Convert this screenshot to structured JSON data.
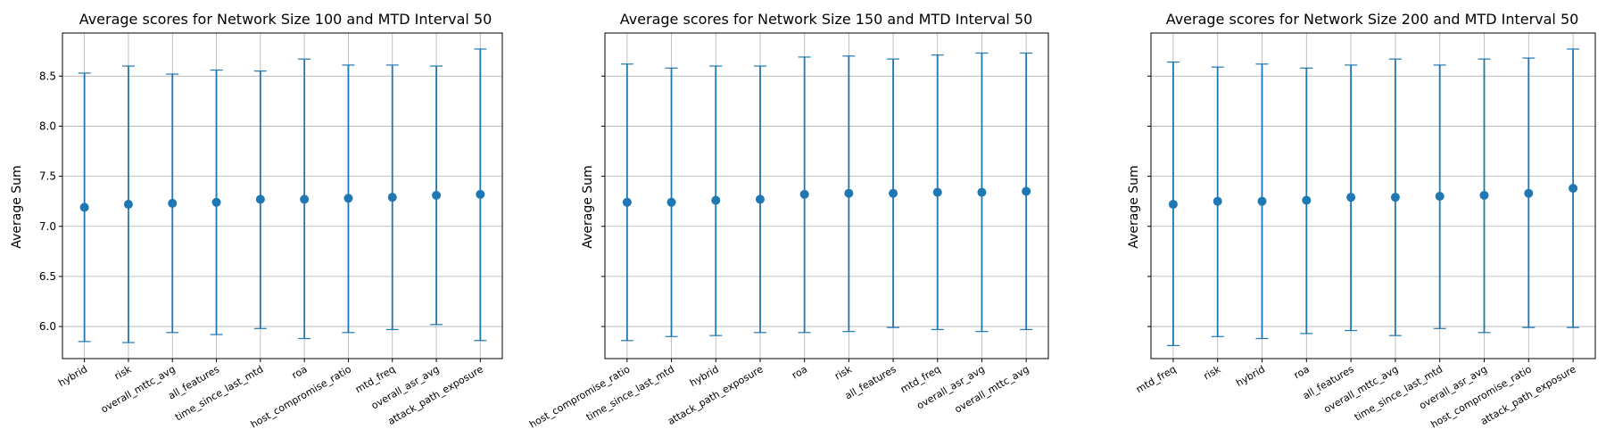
{
  "colors": {
    "series": "#1f77b4",
    "grid": "#b0b0b0"
  },
  "chart_data": [
    {
      "type": "scatter",
      "title": "Average scores for Network Size 100 and MTD Interval 50",
      "ylabel": "Average Sum",
      "xlabel": "",
      "ylim": [
        5.68,
        8.93
      ],
      "yticks": [
        "6.0",
        "6.5",
        "7.0",
        "7.5",
        "8.0",
        "8.5"
      ],
      "grid": true,
      "categories": [
        "hybrid",
        "risk",
        "overall_mttc_avg",
        "all_features",
        "time_since_last_mtd",
        "roa",
        "host_compromise_ratio",
        "mtd_freq",
        "overall_asr_avg",
        "attack_path_exposure"
      ],
      "values": [
        7.19,
        7.22,
        7.23,
        7.24,
        7.27,
        7.27,
        7.28,
        7.29,
        7.31,
        7.32
      ],
      "lower": [
        5.85,
        5.84,
        5.94,
        5.92,
        5.98,
        5.88,
        5.94,
        5.97,
        6.02,
        5.86
      ],
      "upper": [
        8.53,
        8.6,
        8.52,
        8.56,
        8.55,
        8.67,
        8.61,
        8.61,
        8.6,
        8.77
      ]
    },
    {
      "type": "scatter",
      "title": "Average scores for Network Size 150 and MTD Interval 50",
      "ylabel": "Average Sum",
      "xlabel": "",
      "ylim": [
        5.68,
        8.93
      ],
      "yticks": [],
      "grid": true,
      "categories": [
        "host_compromise_ratio",
        "time_since_last_mtd",
        "hybrid",
        "attack_path_exposure",
        "roa",
        "risk",
        "all_features",
        "mtd_freq",
        "overall_asr_avg",
        "overall_mttc_avg"
      ],
      "values": [
        7.24,
        7.24,
        7.26,
        7.27,
        7.32,
        7.33,
        7.33,
        7.34,
        7.34,
        7.35
      ],
      "lower": [
        5.86,
        5.9,
        5.91,
        5.94,
        5.94,
        5.95,
        5.99,
        5.97,
        5.95,
        5.97
      ],
      "upper": [
        8.62,
        8.58,
        8.6,
        8.6,
        8.69,
        8.7,
        8.67,
        8.71,
        8.73,
        8.73
      ]
    },
    {
      "type": "scatter",
      "title": "Average scores for Network Size 200 and MTD Interval 50",
      "ylabel": "Average Sum",
      "xlabel": "",
      "ylim": [
        5.68,
        8.93
      ],
      "yticks": [],
      "grid": true,
      "categories": [
        "mtd_freq",
        "risk",
        "hybrid",
        "roa",
        "all_features",
        "overall_mttc_avg",
        "time_since_last_mtd",
        "overall_asr_avg",
        "host_compromise_ratio",
        "attack_path_exposure"
      ],
      "values": [
        7.22,
        7.25,
        7.25,
        7.26,
        7.29,
        7.29,
        7.3,
        7.31,
        7.33,
        7.38
      ],
      "lower": [
        5.81,
        5.9,
        5.88,
        5.93,
        5.96,
        5.91,
        5.98,
        5.94,
        5.99,
        5.99
      ],
      "upper": [
        8.64,
        8.59,
        8.62,
        8.58,
        8.61,
        8.67,
        8.61,
        8.67,
        8.68,
        8.77
      ]
    }
  ]
}
